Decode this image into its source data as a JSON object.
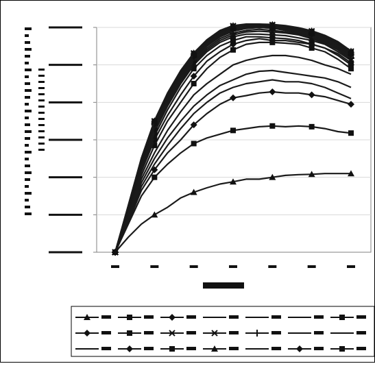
{
  "chart_data": {
    "type": "line",
    "title": "",
    "xlabel": "",
    "ylabel": "",
    "tick_labels_legible": false,
    "legend_labels_legible": false,
    "gridlines": "horizontal",
    "legend_position": "bottom",
    "x": [
      0,
      1,
      2,
      3,
      4,
      5,
      6,
      7,
      8,
      9,
      10,
      11,
      12,
      13,
      14,
      15,
      16,
      17,
      18
    ],
    "xlim": [
      0,
      18
    ],
    "ylim": [
      0,
      600
    ],
    "series": [
      {
        "marker": "triangle",
        "values": [
          0,
          40,
          75,
          100,
          120,
          145,
          160,
          172,
          182,
          188,
          195,
          195,
          200,
          205,
          207,
          208,
          210,
          210,
          210
        ]
      },
      {
        "marker": "square",
        "values": [
          0,
          75,
          150,
          200,
          235,
          265,
          290,
          305,
          315,
          325,
          330,
          335,
          337,
          335,
          337,
          335,
          330,
          322,
          318
        ]
      },
      {
        "marker": "diamond",
        "values": [
          0,
          80,
          165,
          220,
          265,
          300,
          340,
          370,
          395,
          412,
          418,
          425,
          428,
          425,
          425,
          420,
          415,
          405,
          395
        ]
      },
      {
        "marker": "none",
        "values": [
          0,
          85,
          175,
          235,
          285,
          330,
          370,
          400,
          425,
          440,
          450,
          455,
          460,
          455,
          455,
          450,
          440,
          425,
          410
        ]
      },
      {
        "marker": "none",
        "values": [
          0,
          90,
          185,
          250,
          305,
          350,
          390,
          420,
          445,
          460,
          475,
          483,
          485,
          480,
          475,
          470,
          465,
          455,
          440
        ]
      },
      {
        "marker": "none",
        "values": [
          0,
          95,
          195,
          265,
          325,
          375,
          420,
          450,
          475,
          500,
          512,
          520,
          525,
          525,
          520,
          512,
          500,
          490,
          475
        ]
      },
      {
        "marker": "square",
        "values": [
          0,
          100,
          205,
          285,
          350,
          400,
          450,
          490,
          520,
          540,
          555,
          560,
          560,
          558,
          555,
          545,
          535,
          515,
          490
        ]
      },
      {
        "marker": "diamond",
        "values": [
          0,
          105,
          215,
          300,
          365,
          420,
          470,
          510,
          535,
          555,
          565,
          570,
          565,
          565,
          560,
          555,
          545,
          525,
          500
        ]
      },
      {
        "marker": "square",
        "values": [
          0,
          105,
          220,
          310,
          380,
          440,
          490,
          525,
          550,
          565,
          575,
          575,
          572,
          570,
          565,
          555,
          545,
          530,
          505
        ]
      },
      {
        "marker": "cross",
        "values": [
          0,
          110,
          225,
          320,
          390,
          450,
          500,
          535,
          560,
          575,
          582,
          582,
          580,
          578,
          572,
          565,
          555,
          535,
          512
        ]
      },
      {
        "marker": "x",
        "values": [
          0,
          110,
          230,
          325,
          395,
          455,
          505,
          540,
          565,
          580,
          588,
          590,
          588,
          585,
          580,
          570,
          558,
          540,
          515
        ]
      },
      {
        "marker": "plus",
        "values": [
          0,
          112,
          232,
          330,
          400,
          460,
          510,
          545,
          570,
          585,
          592,
          595,
          592,
          588,
          582,
          572,
          560,
          542,
          518
        ]
      },
      {
        "marker": "none",
        "values": [
          0,
          115,
          238,
          335,
          405,
          465,
          515,
          550,
          575,
          590,
          597,
          600,
          598,
          592,
          585,
          575,
          562,
          545,
          520
        ]
      },
      {
        "marker": "none",
        "values": [
          0,
          115,
          240,
          338,
          410,
          470,
          518,
          552,
          578,
          592,
          598,
          600,
          598,
          593,
          587,
          578,
          565,
          548,
          522
        ]
      },
      {
        "marker": "none",
        "values": [
          0,
          117,
          242,
          340,
          412,
          472,
          520,
          555,
          580,
          594,
          599,
          600,
          599,
          595,
          588,
          580,
          568,
          550,
          525
        ]
      },
      {
        "marker": "diamond",
        "values": [
          0,
          118,
          244,
          342,
          415,
          475,
          522,
          557,
          582,
          596,
          600,
          600,
          600,
          597,
          590,
          582,
          570,
          552,
          527
        ]
      },
      {
        "marker": "square",
        "values": [
          0,
          120,
          245,
          345,
          418,
          478,
          525,
          560,
          585,
          598,
          602,
          602,
          601,
          598,
          592,
          584,
          572,
          555,
          530
        ]
      },
      {
        "marker": "triangle",
        "values": [
          0,
          120,
          246,
          346,
          420,
          480,
          527,
          562,
          587,
          600,
          604,
          604,
          603,
          600,
          594,
          586,
          574,
          557,
          532
        ]
      },
      {
        "marker": "none",
        "values": [
          0,
          121,
          247,
          347,
          421,
          481,
          528,
          563,
          588,
          601,
          605,
          605,
          604,
          601,
          595,
          587,
          575,
          558,
          533
        ]
      },
      {
        "marker": "diamond",
        "values": [
          0,
          122,
          248,
          348,
          422,
          482,
          529,
          564,
          589,
          602,
          606,
          606,
          605,
          602,
          596,
          588,
          576,
          559,
          534
        ]
      },
      {
        "marker": "square",
        "values": [
          0,
          123,
          249,
          349,
          423,
          483,
          530,
          565,
          590,
          603,
          607,
          607,
          606,
          603,
          597,
          589,
          577,
          560,
          535
        ]
      },
      {
        "marker": "x",
        "values": [
          0,
          124,
          250,
          350,
          424,
          484,
          531,
          566,
          591,
          604,
          608,
          608,
          607,
          604,
          598,
          590,
          578,
          561,
          536
        ]
      },
      {
        "marker": "triangle",
        "values": [
          0,
          125,
          251,
          351,
          425,
          485,
          532,
          567,
          592,
          605,
          609,
          609,
          608,
          605,
          599,
          591,
          579,
          562,
          537
        ]
      }
    ]
  }
}
